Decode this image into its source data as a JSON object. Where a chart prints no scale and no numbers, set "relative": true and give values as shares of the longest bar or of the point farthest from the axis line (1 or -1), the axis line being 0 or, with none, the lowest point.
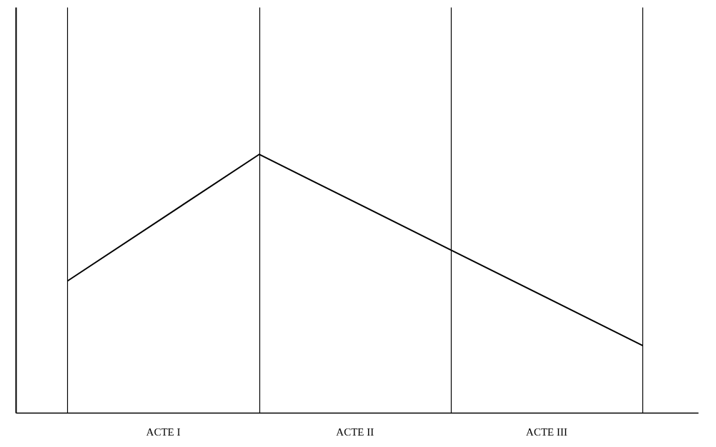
{
  "chart_data": {
    "type": "line",
    "relative": true,
    "categories": [
      null,
      null,
      null,
      null
    ],
    "series": [
      {
        "color": "#000000",
        "values": [
          0.51,
          1,
          0.63,
          0.26
        ]
      }
    ],
    "annotations": [
      "ACTE I",
      "ACTE II",
      "ACTE III"
    ],
    "grid": "x",
    "marker": "none",
    "line_style": "solid"
  }
}
